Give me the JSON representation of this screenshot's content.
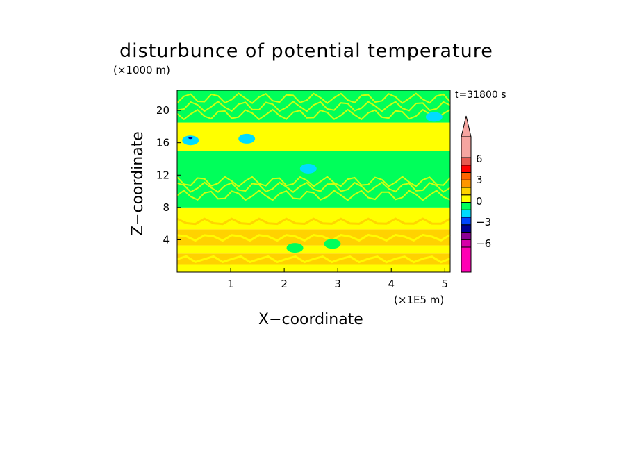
{
  "chart_data": {
    "type": "heatmap",
    "title": "disturbunce of potential temperature",
    "time_label": "t=31800 s",
    "xlabel": "X−coordinate",
    "ylabel": "Z−coordinate",
    "x_unit": "(×1E5 m)",
    "y_unit": "(×1000 m)",
    "xlim": [
      0,
      5.1
    ],
    "ylim": [
      0,
      22.5
    ],
    "x_ticks": [
      1,
      2,
      3,
      4,
      5
    ],
    "y_ticks": [
      4,
      8,
      12,
      16,
      20
    ],
    "colorbar": {
      "tick_labels": [
        "6",
        "3",
        "0",
        "−3",
        "−6"
      ],
      "tick_values": [
        6,
        3,
        0,
        -3,
        -6
      ],
      "colors": [
        "#ff00b4",
        "#d600a8",
        "#8c0096",
        "#000096",
        "#0046ff",
        "#00dcff",
        "#00ff5a",
        "#ffff00",
        "#ffd200",
        "#ff9600",
        "#ff6400",
        "#ff0000",
        "#e65a50",
        "#f5a5a0"
      ]
    },
    "layers": [
      {
        "z": [
          0,
          0.9
        ],
        "class": "+0.5",
        "color": "#ffff00"
      },
      {
        "z": [
          0.9,
          2.3
        ],
        "class": "+1.5",
        "color": "#ffd200"
      },
      {
        "z": [
          2.3,
          3.3
        ],
        "class": "+0.5",
        "color": "#ffff00"
      },
      {
        "z": [
          3.3,
          5.3
        ],
        "class": "+1.5",
        "color": "#ffd200"
      },
      {
        "z": [
          5.3,
          8.0
        ],
        "class": "+0.5",
        "color": "#ffff00"
      },
      {
        "z": [
          8.0,
          15.0
        ],
        "class": "-0.5",
        "color": "#00ff5a"
      },
      {
        "z": [
          15.0,
          18.5
        ],
        "class": "+0.5",
        "color": "#ffff00"
      },
      {
        "z": [
          18.5,
          22.5
        ],
        "class": "-0.5",
        "color": "#00ff5a"
      }
    ],
    "features": [
      {
        "x": 0.25,
        "z": 16.3,
        "class": "-1.5",
        "color": "#00dcff"
      },
      {
        "x": 0.25,
        "z": 16.6,
        "class": "-3.5",
        "color": "#000096"
      },
      {
        "x": 2.45,
        "z": 12.8,
        "class": "-1.5",
        "color": "#00dcff"
      },
      {
        "x": 1.3,
        "z": 16.5,
        "class": "-1.5",
        "color": "#00dcff"
      },
      {
        "x": 4.8,
        "z": 19.2,
        "class": "-1.5",
        "color": "#00dcff"
      },
      {
        "x": 2.2,
        "z": 3.0,
        "class": "-0.5",
        "color": "#00ff5a"
      },
      {
        "x": 2.9,
        "z": 3.5,
        "class": "-0.5",
        "color": "#00ff5a"
      }
    ]
  }
}
